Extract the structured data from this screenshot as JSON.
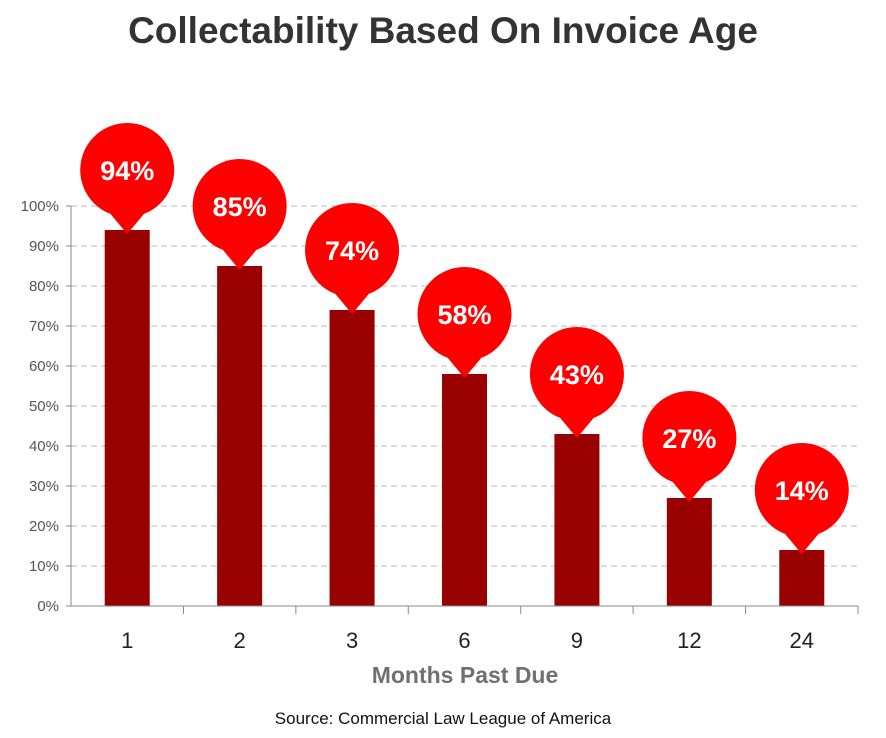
{
  "chart_data": {
    "type": "bar",
    "title": "Collectability Based On Invoice Age",
    "xlabel": "Months Past Due",
    "ylabel": "",
    "categories": [
      "1",
      "2",
      "3",
      "6",
      "9",
      "12",
      "24"
    ],
    "values": [
      94,
      85,
      74,
      58,
      43,
      27,
      14
    ],
    "data_labels": [
      "94%",
      "85%",
      "74%",
      "58%",
      "43%",
      "27%",
      "14%"
    ],
    "ylim": [
      0,
      100
    ],
    "yticks": [
      0,
      10,
      20,
      30,
      40,
      50,
      60,
      70,
      80,
      90,
      100
    ],
    "ytick_labels": [
      "0%",
      "10%",
      "20%",
      "30%",
      "40%",
      "50%",
      "60%",
      "70%",
      "80%",
      "90%",
      "100%"
    ],
    "grid": true,
    "source": "Source: Commercial Law League of America",
    "colors": {
      "bar": "#990000",
      "bubble": "#ff0000",
      "grid": "#bbbbbb",
      "axis": "#888888"
    }
  }
}
